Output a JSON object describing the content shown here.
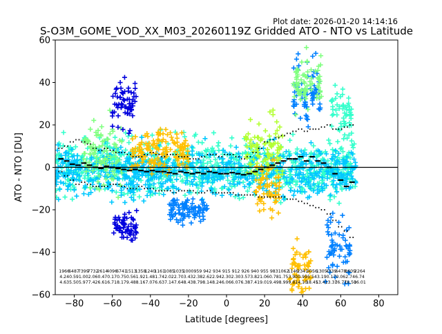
{
  "plot_date": "Plot date: 2026-01-20 14:14:16",
  "chart_data": {
    "type": "scatter",
    "title": "S-O3M_GOME_VOD_XX_M03_20260119Z Gridded ATO - NTO vs Latitude",
    "xlabel": "Latitude [degrees]",
    "ylabel": "ATO - NTO [DU]",
    "xlim": [
      -90,
      90
    ],
    "ylim": [
      -60,
      60
    ],
    "xticks": [
      -80,
      -60,
      -40,
      -20,
      0,
      20,
      40,
      60,
      80
    ],
    "yticks": [
      -60,
      -40,
      -20,
      0,
      20,
      40,
      60
    ],
    "marker": "+",
    "point_colors": [
      "#00c8ff",
      "#33ffcc",
      "#80ff80",
      "#ffbf00",
      "#0080ff",
      "#0000dd",
      "#b3ff33"
    ],
    "reference_line_y": 0,
    "bin_lat": [
      -87,
      -84,
      -81,
      -78,
      -75,
      -72,
      -69,
      -66,
      -63,
      -60,
      -57,
      -54,
      -51,
      -48,
      -45,
      -42,
      -39,
      -36,
      -33,
      -30,
      -27,
      -24,
      -21,
      -18,
      -15,
      -12,
      -9,
      -6,
      -3,
      0,
      3,
      6,
      9,
      12,
      15,
      18,
      21,
      24,
      27,
      30,
      33,
      36,
      39,
      42,
      45,
      48,
      51,
      54,
      57,
      60,
      63,
      66
    ],
    "bin_mean": [
      4,
      3,
      1.5,
      1,
      2,
      1,
      0,
      -0.5,
      0.5,
      0,
      -0.5,
      -1,
      -1.5,
      -1,
      -1.5,
      -2,
      -1.5,
      -2,
      -2,
      -2.5,
      -3,
      -2,
      -2.5,
      -3,
      -2.5,
      -3,
      -2,
      -2.5,
      -3,
      -3,
      -2.5,
      -3,
      -3.5,
      -3,
      -2,
      -1,
      0,
      1,
      2,
      3,
      4,
      4,
      5,
      3,
      5,
      3,
      2,
      0,
      -3,
      -6,
      -9,
      -7
    ],
    "bin_upper": [
      9,
      10,
      12,
      13,
      12,
      11,
      9,
      8,
      9,
      8,
      7,
      7,
      6,
      5,
      5,
      6,
      7,
      6,
      5,
      6,
      6,
      5,
      5,
      4,
      4,
      5,
      6,
      6,
      5,
      6,
      6,
      5,
      4,
      5,
      7,
      9,
      12,
      13,
      14,
      15,
      16,
      17,
      18,
      17,
      18,
      18,
      19,
      20,
      18,
      18,
      19,
      20
    ],
    "bin_lower": [
      -2,
      -4,
      -6,
      -8,
      -7,
      -8,
      -9,
      -9,
      -9,
      -8,
      -8,
      -9,
      -10,
      -10,
      -9,
      -10,
      -10,
      -11,
      -11,
      -11,
      -12,
      -11,
      -11,
      -11,
      -12,
      -12,
      -11,
      -12,
      -12,
      -12,
      -12,
      -13,
      -13,
      -13,
      -13,
      -14,
      -14,
      -14,
      -14,
      -14,
      -15,
      -15,
      -16,
      -17,
      -18,
      -19,
      -20,
      -22,
      -25,
      -28,
      -30,
      -33
    ],
    "scatter_clusters": [
      {
        "lat_range": [
          -90,
          68
        ],
        "center": 0,
        "spread": 12,
        "color": "#33ffcc"
      },
      {
        "lat_range": [
          -90,
          68
        ],
        "center": -2,
        "spread": 10,
        "color": "#00c8ff"
      },
      {
        "lat_range": [
          -75,
          -55
        ],
        "center": 5,
        "spread": 14,
        "color": "#80ff80"
      },
      {
        "lat_range": [
          -50,
          -20
        ],
        "center": 8,
        "spread": 9,
        "color": "#ffbf00"
      },
      {
        "lat_range": [
          -60,
          -47
        ],
        "center": 30,
        "spread": 10,
        "color": "#0000dd"
      },
      {
        "lat_range": [
          -60,
          -47
        ],
        "center": -28,
        "spread": 6,
        "color": "#0000dd"
      },
      {
        "lat_range": [
          -30,
          -10
        ],
        "center": -20,
        "spread": 5,
        "color": "#0080ff"
      },
      {
        "lat_range": [
          10,
          30
        ],
        "center": 8,
        "spread": 12,
        "color": "#b3ff33"
      },
      {
        "lat_range": [
          15,
          28
        ],
        "center": -10,
        "spread": 12,
        "color": "#ffbf00"
      },
      {
        "lat_range": [
          33,
          45
        ],
        "center": -48,
        "spread": 12,
        "color": "#ffbf00"
      },
      {
        "lat_range": [
          35,
          50
        ],
        "center": 35,
        "spread": 15,
        "color": "#0080ff"
      },
      {
        "lat_range": [
          35,
          50
        ],
        "center": 40,
        "spread": 12,
        "color": "#80ff80"
      },
      {
        "lat_range": [
          52,
          65
        ],
        "center": -38,
        "spread": 14,
        "color": "#0080ff"
      },
      {
        "lat_range": [
          55,
          66
        ],
        "center": 25,
        "spread": 10,
        "color": "#33ffcc"
      }
    ],
    "count_labels": [
      [
        "1966",
        "4.24",
        "4.63"
      ],
      [
        "6487",
        "0.59",
        "5.50"
      ],
      [
        "7399",
        "1.00",
        "5.97"
      ],
      [
        "7732",
        "2.06",
        "7.42"
      ],
      [
        "2614",
        "0.47",
        "6.61"
      ],
      [
        "4096",
        "0.17",
        "6.71"
      ],
      [
        "6741",
        "0.75",
        "8.17"
      ],
      [
        "1513",
        "0.56",
        "9.48"
      ],
      [
        "1358",
        "1.92",
        "8.16"
      ],
      [
        "1240",
        "1.48",
        "7.07"
      ],
      [
        "1161",
        "1.74",
        "6.63"
      ],
      [
        "1085",
        "2.02",
        "7.14"
      ],
      [
        "1035",
        "2.70",
        "7.64"
      ],
      [
        "1000",
        "3.43",
        "8.43"
      ],
      [
        "959",
        "2.38",
        "8.79"
      ],
      [
        "942",
        "2.62",
        "8.14"
      ],
      [
        "934",
        "2.94",
        "8.24"
      ],
      [
        "915",
        "2.30",
        "6.06"
      ],
      [
        "912",
        "2.30",
        "6.07"
      ],
      [
        "926",
        "3.57",
        "6.38"
      ],
      [
        "940",
        "3.82",
        "7.41"
      ],
      [
        "955",
        "1.06",
        "9.01"
      ],
      [
        "983",
        "0.78",
        "9.49"
      ],
      [
        "1062",
        "1.75",
        "8.99"
      ],
      [
        "1146",
        "3.90",
        "9.81"
      ],
      [
        "2341",
        "0.99",
        "4.10"
      ],
      [
        "3056",
        "5.54",
        "18.45"
      ],
      [
        "1305",
        "3.19",
        "13.41"
      ],
      [
        "4339",
        "0.17",
        "13.37"
      ],
      [
        "6478",
        "0.06",
        "16.77"
      ],
      [
        "8609",
        "2.74",
        "18.50"
      ],
      [
        "2264",
        "6.74",
        "16.01"
      ]
    ]
  }
}
